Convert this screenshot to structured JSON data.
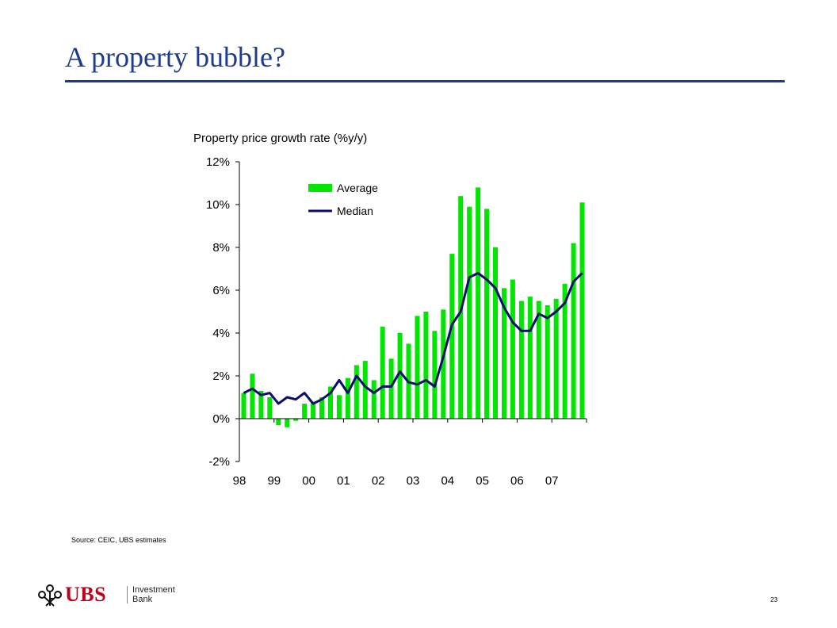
{
  "slide": {
    "title": "A property bubble?",
    "source": "Source: CEIC, UBS estimates",
    "page_number": "23",
    "logo": {
      "brand": "UBS",
      "line1": "Investment",
      "line2": "Bank"
    }
  },
  "colors": {
    "title": "#1f3b8c",
    "bar": "#00e600",
    "line": "#0d0d6b",
    "logo": "#c0001a"
  },
  "chart_data": {
    "type": "bar",
    "title": "Property price growth rate (%y/y)",
    "xlabel": "",
    "ylabel": "",
    "ylim": [
      -2,
      12
    ],
    "yticks": [
      -2,
      0,
      2,
      4,
      6,
      8,
      10,
      12
    ],
    "ytick_labels": [
      "-2%",
      "0%",
      "2%",
      "4%",
      "6%",
      "8%",
      "10%",
      "12%"
    ],
    "x_tick_labels": [
      "98",
      "99",
      "00",
      "01",
      "02",
      "03",
      "04",
      "05",
      "06",
      "07"
    ],
    "periods_per_label": 4,
    "legend_position": "top-left",
    "series": [
      {
        "name": "Average",
        "type": "bar",
        "values": [
          1.2,
          2.1,
          1.3,
          1.0,
          -0.3,
          -0.4,
          -0.1,
          0.7,
          0.8,
          1.0,
          1.5,
          1.1,
          1.9,
          2.5,
          2.7,
          1.8,
          4.3,
          2.8,
          4.0,
          3.5,
          4.8,
          5.0,
          4.1,
          5.1,
          7.7,
          10.4,
          9.9,
          10.8,
          9.8,
          8.0,
          6.1,
          6.5,
          5.5,
          5.7,
          5.5,
          5.3,
          5.6,
          6.3,
          8.2,
          10.1
        ]
      },
      {
        "name": "Median",
        "type": "line",
        "values": [
          1.2,
          1.4,
          1.1,
          1.2,
          0.7,
          1.0,
          0.9,
          1.2,
          0.7,
          0.9,
          1.2,
          1.8,
          1.2,
          2.0,
          1.5,
          1.2,
          1.5,
          1.5,
          2.2,
          1.7,
          1.6,
          1.8,
          1.5,
          2.9,
          4.4,
          5.0,
          6.6,
          6.8,
          6.5,
          6.1,
          5.2,
          4.5,
          4.1,
          4.1,
          4.9,
          4.7,
          5.0,
          5.4,
          6.4,
          6.8
        ]
      }
    ]
  }
}
